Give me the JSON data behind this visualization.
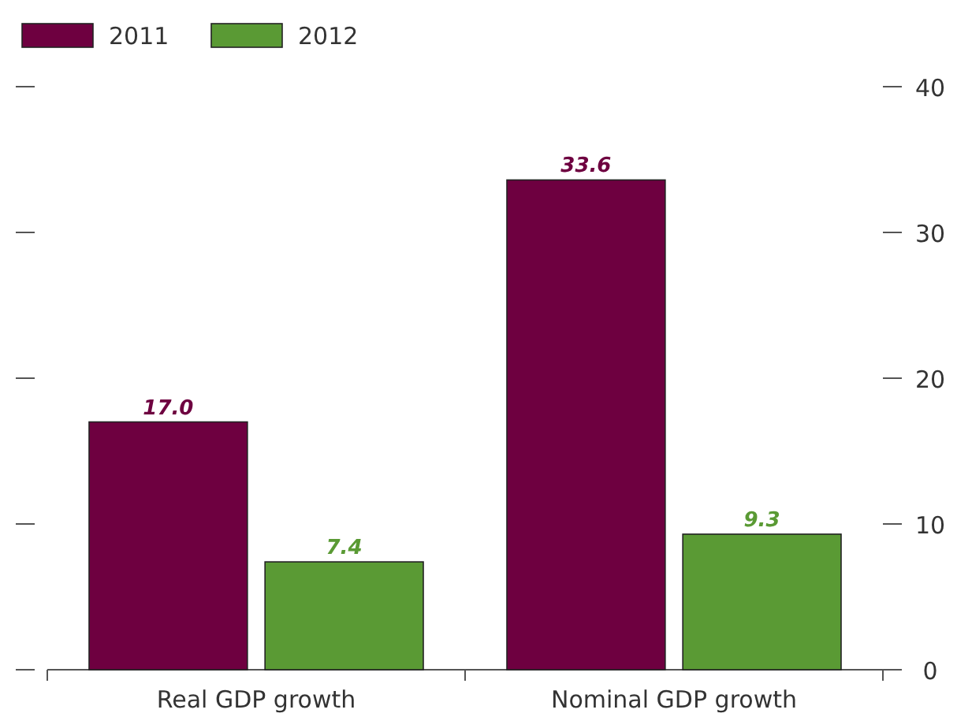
{
  "chart_data": {
    "type": "bar",
    "categories": [
      "Real GDP growth",
      "Nominal GDP growth"
    ],
    "series": [
      {
        "name": "2011",
        "color": "#6e0040",
        "values": [
          17.0,
          33.6
        ],
        "value_labels": [
          "17.0",
          "33.6"
        ]
      },
      {
        "name": "2012",
        "color": "#5a9a34",
        "values": [
          7.4,
          9.3
        ],
        "value_labels": [
          "7.4",
          "9.3"
        ]
      }
    ],
    "ylim": [
      0,
      40
    ],
    "yticks": [
      0,
      10,
      20,
      30,
      40
    ],
    "legend": "top left",
    "grid": false
  }
}
